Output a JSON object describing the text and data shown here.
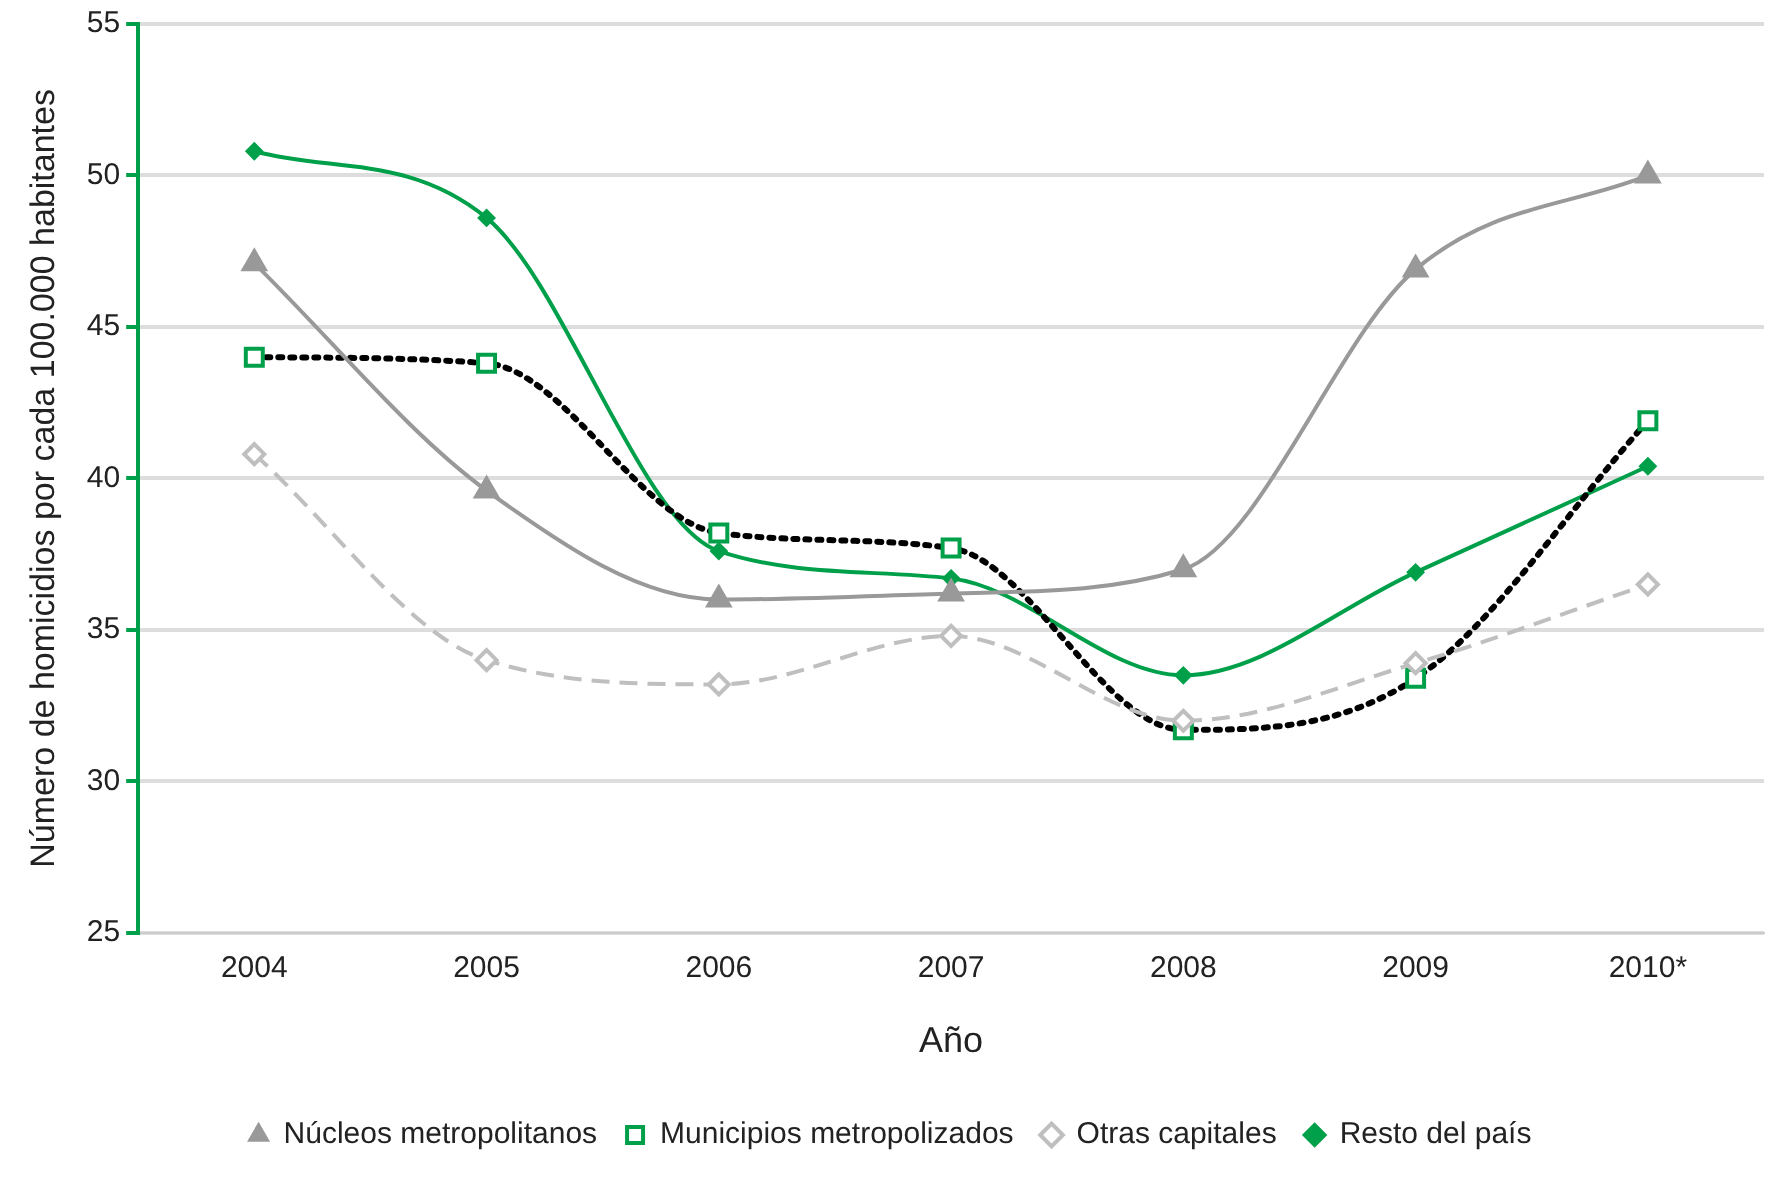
{
  "chart_data": {
    "type": "line",
    "xlabel": "Año",
    "ylabel": "Número de homicidios por cada 100.000 habitantes",
    "categories": [
      "2004",
      "2005",
      "2006",
      "2007",
      "2008",
      "2009",
      "2010*"
    ],
    "series": [
      {
        "name": "Núcleos metropolitanos",
        "color": "#999999",
        "marker": "triangle",
        "line_style": "solid",
        "values": [
          47.1,
          39.6,
          36.0,
          36.2,
          37.0,
          46.9,
          50.0
        ]
      },
      {
        "name": "Municipios metropolizados",
        "color": "#000000",
        "colors": [
          "#00a04a",
          "#00a04a",
          "#00a04a",
          "#00a04a",
          "#00a04a",
          "#00a04a",
          "#00a04a"
        ],
        "marker": "square",
        "line_style": "dotted",
        "values": [
          44.0,
          43.8,
          38.2,
          37.7,
          31.7,
          33.4,
          41.9
        ]
      },
      {
        "name": "Otras capitales",
        "color": "#bfbfbf",
        "marker": "diamond",
        "line_style": "dashed",
        "values": [
          40.8,
          34.0,
          33.2,
          34.8,
          32.0,
          33.9,
          36.5
        ]
      },
      {
        "name": "Resto del país",
        "color": "#00a04a",
        "marker": "diamond",
        "line_style": "solid",
        "values": [
          50.8,
          48.6,
          37.6,
          36.7,
          33.5,
          36.9,
          40.4
        ]
      }
    ],
    "ylim": [
      25,
      55
    ],
    "yticks": [
      25,
      30,
      35,
      40,
      45,
      50,
      55
    ],
    "grid": "y",
    "legend": "bottom"
  }
}
